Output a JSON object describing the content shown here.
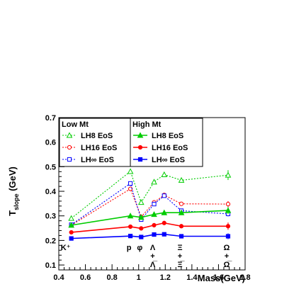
{
  "chart_data": {
    "type": "line",
    "xlabel": "Mass(GeV)",
    "ylabel": "T",
    "ylabel_sub": "slope",
    "ylabel_unit": " (GeV)",
    "xlim": [
      0.4,
      1.8
    ],
    "ylim": [
      0.08,
      0.7
    ],
    "x_ticks": [
      0.4,
      0.6,
      0.8,
      1.0,
      1.2,
      1.4,
      1.6,
      1.8
    ],
    "x_tick_labels": [
      "0.4",
      "0.6",
      "0.8",
      "1",
      "1.2",
      "1.4",
      "1.6",
      "1.8"
    ],
    "y_ticks": [
      0.1,
      0.2,
      0.3,
      0.4,
      0.5,
      0.6,
      0.7
    ],
    "y_tick_labels": [
      "0.1",
      "0.2",
      "0.3",
      "0.4",
      "0.5",
      "0.6",
      "0.7"
    ],
    "grid": false,
    "legend_placement": "top-left",
    "legend_groups": [
      {
        "title": "Low Mt",
        "entries": [
          "LH8 EoS",
          "LH16 EoS",
          "LH∞ EoS"
        ]
      },
      {
        "title": "High Mt",
        "entries": [
          "LH8 EoS",
          "LH16 EoS",
          "LH∞ EoS"
        ]
      }
    ],
    "particle_labels": [
      {
        "x": 0.494,
        "text": "K⁺"
      },
      {
        "x": 0.938,
        "text": "p"
      },
      {
        "x": 1.019,
        "text": "φ"
      },
      {
        "x": 1.116,
        "text": "Λ",
        "sub": [
          "+",
          "Λ̅"
        ]
      },
      {
        "x": 1.321,
        "text": "Ξ",
        "sub": [
          "+",
          "Ξ̅"
        ]
      },
      {
        "x": 1.672,
        "text": "Ω",
        "sub": [
          "+",
          "Ω̅"
        ]
      }
    ],
    "x": [
      0.494,
      0.938,
      1.019,
      1.116,
      1.192,
      1.321,
      1.672
    ],
    "series": [
      {
        "name": "LH8 EoS",
        "group": "Low Mt",
        "color": "#00cc00",
        "dash": "dotted",
        "marker": "triangle-open",
        "values": [
          0.29,
          0.481,
          0.355,
          0.438,
          0.468,
          0.445,
          0.466
        ],
        "errors": [
          0,
          0,
          0,
          0,
          0,
          0,
          0.02
        ]
      },
      {
        "name": "LH16 EoS",
        "group": "Low Mt",
        "color": "#ff0000",
        "dash": "dotted",
        "marker": "circle-open",
        "values": [
          0.262,
          0.41,
          0.296,
          0.355,
          0.385,
          0.349,
          0.348
        ],
        "errors": [
          0,
          0,
          0,
          0,
          0,
          0,
          0.012
        ]
      },
      {
        "name": "LH∞ EoS",
        "group": "Low Mt",
        "color": "#0000ff",
        "dash": "dotted",
        "marker": "square-open",
        "values": [
          0.264,
          0.432,
          0.285,
          0.348,
          0.382,
          0.321,
          0.308
        ],
        "errors": [
          0,
          0,
          0,
          0,
          0,
          0,
          0.01
        ]
      },
      {
        "name": "LH8 EoS",
        "group": "High Mt",
        "color": "#00cc00",
        "dash": "solid",
        "marker": "triangle-filled",
        "values": [
          0.262,
          0.3,
          0.294,
          0.306,
          0.313,
          0.313,
          0.322
        ],
        "errors": [
          0,
          0,
          0,
          0,
          0,
          0,
          0.015
        ]
      },
      {
        "name": "LH16 EoS",
        "group": "High Mt",
        "color": "#ff0000",
        "dash": "solid",
        "marker": "circle-filled",
        "values": [
          0.233,
          0.256,
          0.249,
          0.262,
          0.271,
          0.258,
          0.258
        ],
        "errors": [
          0,
          0,
          0,
          0,
          0,
          0,
          0.015
        ]
      },
      {
        "name": "LH∞ EoS",
        "group": "High Mt",
        "color": "#0000ff",
        "dash": "solid",
        "marker": "square-filled",
        "values": [
          0.208,
          0.218,
          0.214,
          0.224,
          0.225,
          0.217,
          0.217
        ],
        "errors": [
          0,
          0,
          0,
          0,
          0,
          0,
          0.012
        ]
      }
    ]
  }
}
